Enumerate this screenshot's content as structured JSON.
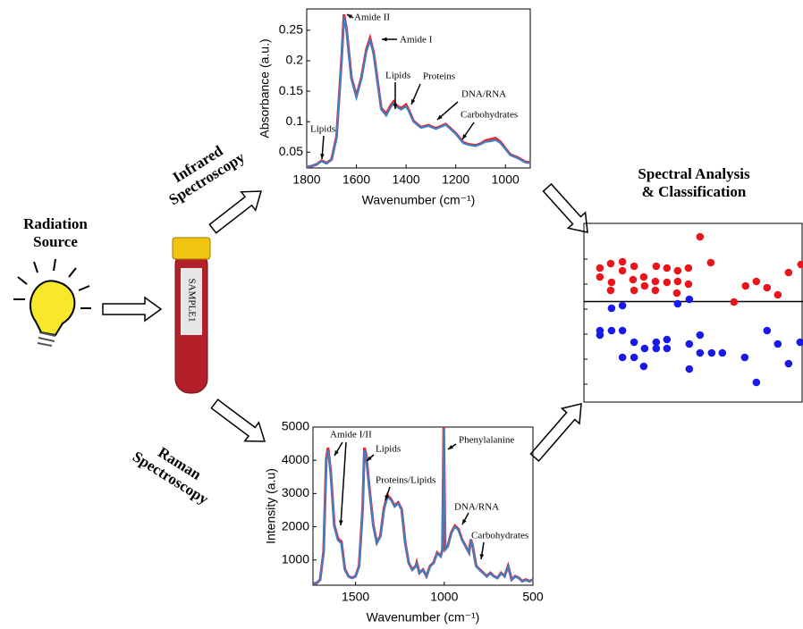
{
  "labels": {
    "radiation_source": [
      "Radiation",
      "Source"
    ],
    "infrared": [
      "Infrared",
      "Spectroscopy"
    ],
    "raman": [
      "Raman",
      "Spectroscopy"
    ],
    "analysis": [
      "Spectral Analysis",
      "& Classification"
    ],
    "sample": "SAMPLE1"
  },
  "chart_data": [
    {
      "type": "line",
      "y_label": "Absorbance (a.u.)",
      "x_label": "Wavenumber (cm⁻¹)",
      "xlim": [
        1800,
        900
      ],
      "xticks": [
        1800,
        1600,
        1400,
        1200,
        1000
      ],
      "ylim": [
        0.024,
        0.285
      ],
      "yticks": [
        0.05,
        0.1,
        0.15,
        0.2,
        0.25
      ],
      "x": [
        1800,
        1780,
        1760,
        1740,
        1720,
        1700,
        1680,
        1660,
        1650,
        1640,
        1620,
        1600,
        1580,
        1560,
        1545,
        1530,
        1500,
        1480,
        1460,
        1450,
        1440,
        1420,
        1400,
        1390,
        1370,
        1340,
        1310,
        1280,
        1240,
        1200,
        1170,
        1150,
        1120,
        1100,
        1080,
        1060,
        1040,
        1020,
        1000,
        980,
        950,
        920,
        900
      ],
      "series": [
        {
          "color": "#e8262b",
          "values": [
            0.026,
            0.027,
            0.03,
            0.036,
            0.032,
            0.038,
            0.075,
            0.2,
            0.276,
            0.253,
            0.172,
            0.142,
            0.172,
            0.218,
            0.237,
            0.212,
            0.122,
            0.113,
            0.128,
            0.133,
            0.127,
            0.122,
            0.128,
            0.12,
            0.101,
            0.091,
            0.094,
            0.089,
            0.096,
            0.081,
            0.066,
            0.063,
            0.061,
            0.064,
            0.069,
            0.071,
            0.073,
            0.067,
            0.056,
            0.046,
            0.041,
            0.034,
            0.033
          ]
        },
        {
          "color": "#3d7fc4",
          "values": [
            0.026,
            0.027,
            0.03,
            0.035,
            0.031,
            0.038,
            0.073,
            0.198,
            0.272,
            0.25,
            0.17,
            0.14,
            0.17,
            0.215,
            0.233,
            0.21,
            0.12,
            0.11,
            0.125,
            0.13,
            0.125,
            0.12,
            0.125,
            0.118,
            0.1,
            0.09,
            0.093,
            0.088,
            0.095,
            0.08,
            0.065,
            0.062,
            0.06,
            0.063,
            0.067,
            0.068,
            0.07,
            0.065,
            0.055,
            0.045,
            0.04,
            0.033,
            0.032
          ]
        }
      ],
      "annotations": [
        "Amide II",
        "Amide I",
        "Lipids",
        "Proteins",
        "DNA/RNA",
        "Carbohydrates",
        "Lipids"
      ]
    },
    {
      "type": "line",
      "y_label": "Intensity (a.u)",
      "x_label": "Wavenumber (cm⁻¹)",
      "xlim": [
        1740,
        500
      ],
      "xticks": [
        1500,
        1000,
        500
      ],
      "ylim": [
        240,
        5000
      ],
      "yticks": [
        1000,
        2000,
        3000,
        4000,
        5000
      ],
      "x": [
        1740,
        1720,
        1700,
        1680,
        1665,
        1655,
        1640,
        1620,
        1600,
        1580,
        1560,
        1540,
        1520,
        1500,
        1480,
        1460,
        1450,
        1440,
        1420,
        1400,
        1380,
        1360,
        1340,
        1320,
        1300,
        1280,
        1260,
        1240,
        1220,
        1200,
        1180,
        1160,
        1155,
        1140,
        1120,
        1100,
        1080,
        1060,
        1040,
        1020,
        1010,
        1003,
        995,
        980,
        960,
        940,
        920,
        900,
        880,
        860,
        850,
        840,
        820,
        800,
        780,
        760,
        740,
        720,
        700,
        680,
        660,
        640,
        620,
        600,
        580,
        560,
        540,
        520,
        500
      ],
      "series": [
        {
          "color": "#e8262b",
          "values": [
            300,
            300,
            400,
            1250,
            4050,
            4380,
            3650,
            2050,
            1650,
            1550,
            720,
            510,
            460,
            510,
            820,
            2550,
            4380,
            4150,
            3050,
            2050,
            1520,
            1720,
            2550,
            2950,
            2830,
            2630,
            2730,
            2520,
            1520,
            910,
            710,
            820,
            920,
            610,
            710,
            510,
            820,
            920,
            1220,
            1120,
            1320,
            5000,
            1320,
            1420,
            1830,
            2030,
            1930,
            1620,
            1420,
            1220,
            1620,
            1420,
            820,
            710,
            610,
            510,
            610,
            510,
            460,
            610,
            510,
            820,
            410,
            510,
            460,
            360,
            410,
            360,
            410
          ]
        },
        {
          "color": "#3d7fc4",
          "values": [
            300,
            300,
            400,
            1200,
            4000,
            4300,
            3600,
            2000,
            1600,
            1500,
            700,
            500,
            450,
            500,
            800,
            2500,
            4300,
            4100,
            3000,
            2000,
            1500,
            1700,
            2500,
            2900,
            2800,
            2600,
            2700,
            2500,
            1500,
            900,
            700,
            800,
            900,
            600,
            700,
            500,
            800,
            900,
            1200,
            1100,
            1300,
            4950,
            1300,
            1400,
            1800,
            2000,
            1900,
            1600,
            1400,
            1200,
            1600,
            1400,
            800,
            700,
            600,
            500,
            600,
            500,
            450,
            600,
            500,
            800,
            400,
            500,
            450,
            350,
            400,
            350,
            400
          ]
        }
      ],
      "annotations": [
        "Amide  I/II",
        "Lipids",
        "Proteins/Lipids",
        "Phenylalanine",
        "DNA/RNA",
        "Carbohydrates"
      ]
    },
    {
      "type": "scatter",
      "xlim": [
        0,
        100
      ],
      "ylim": [
        -45,
        35
      ],
      "threshold": 0,
      "series": [
        {
          "color": "#e8161b",
          "x": [
            7.3,
            12.2,
            17.6,
            7.3,
            17.6,
            22.9,
            12.6,
            12.2,
            22.4,
            22.9,
            27.3,
            27.7,
            33,
            32.6,
            32.6,
            37.9,
            37.9,
            42.8,
            42.8,
            42.4,
            47.7,
            47.7,
            53,
            57.9,
            68.5,
            73.8,
            78.7,
            83.6,
            88.5,
            93.4,
            99.1
          ],
          "values": [
            15,
            17,
            17.8,
            11,
            13.8,
            15.8,
            8.6,
            5,
            9.8,
            5,
            11,
            7,
            15.8,
            9,
            5,
            15,
            8.6,
            13.8,
            9,
            3.8,
            15,
            7.8,
            29,
            17.4,
            -0.2,
            7,
            9,
            6.2,
            3,
            13,
            16.6
          ]
        },
        {
          "color": "#1a1ae8",
          "x": [
            7.3,
            7.3,
            12.6,
            12.6,
            17.6,
            17.6,
            17.6,
            22.9,
            22.9,
            27.3,
            27.7,
            33,
            33,
            37.9,
            37.9,
            42.8,
            48.1,
            48.1,
            48.1,
            53,
            53,
            58.3,
            63.2,
            73.4,
            78.7,
            83.6,
            88.5,
            93.4,
            98.7
          ],
          "values": [
            -13,
            -15,
            -3,
            -13,
            -1.8,
            -13,
            -25,
            -18.2,
            -25,
            -29,
            -21,
            -18.2,
            -21,
            -17,
            -21,
            -1,
            1,
            -19,
            -30.2,
            -15,
            -23,
            -23,
            -23,
            -25,
            -36.2,
            -13,
            -19,
            -27.8,
            -18.2
          ]
        }
      ]
    }
  ]
}
